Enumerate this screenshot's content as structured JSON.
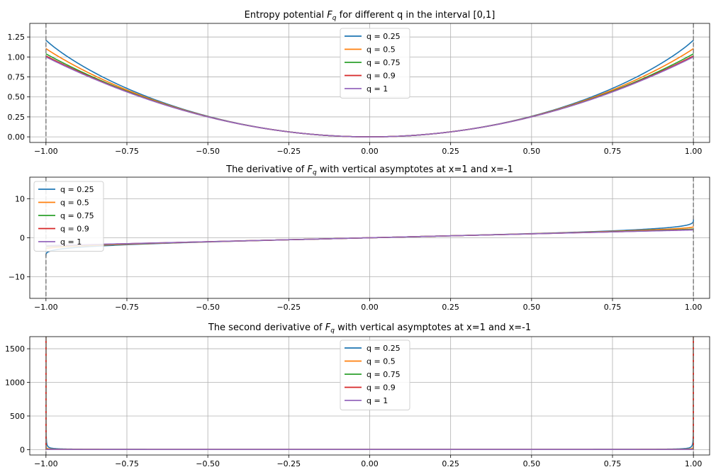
{
  "chart_data": [
    {
      "type": "line",
      "title": {
        "pre": "Entropy potential ",
        "sym": "F",
        "sub": "q",
        "post": " for different q in the interval [0,1]"
      },
      "xlim": [
        -1.05,
        1.05
      ],
      "ylim": [
        -0.07,
        1.42
      ],
      "xticks": [
        -1.0,
        -0.75,
        -0.5,
        -0.25,
        0.0,
        0.25,
        0.5,
        0.75,
        1.0
      ],
      "xtick_labels": [
        "−1.00",
        "−0.75",
        "−0.50",
        "−0.25",
        "0.00",
        "0.25",
        "0.50",
        "0.75",
        "1.00"
      ],
      "yticks": [
        0,
        0.25,
        0.5,
        0.75,
        1.0,
        1.25
      ],
      "ytick_labels": [
        "0.00",
        "0.25",
        "0.50",
        "0.75",
        "1.00",
        "1.25"
      ],
      "grid": true,
      "legend_position": "top-center",
      "vertical_asymptotes": [
        -1,
        1
      ],
      "function": "F",
      "series": [
        {
          "name": "q = 0.25",
          "q": 0.25,
          "color": "#1f77b4"
        },
        {
          "name": "q = 0.5",
          "q": 0.5,
          "color": "#ff7f0e"
        },
        {
          "name": "q = 0.75",
          "q": 0.75,
          "color": "#2ca02c"
        },
        {
          "name": "q = 0.9",
          "q": 0.9,
          "color": "#d62728"
        },
        {
          "name": "q = 1",
          "q": 1,
          "color": "#9467bd"
        }
      ]
    },
    {
      "type": "line",
      "title": {
        "pre": "The derivative of ",
        "sym": "F",
        "sub": "q",
        "post": " with vertical asymptotes at x=1 and x=-1"
      },
      "xlim": [
        -1.05,
        1.05
      ],
      "ylim": [
        -15.5,
        15.5
      ],
      "xticks": [
        -1.0,
        -0.75,
        -0.5,
        -0.25,
        0.0,
        0.25,
        0.5,
        0.75,
        1.0
      ],
      "xtick_labels": [
        "−1.00",
        "−0.75",
        "−0.50",
        "−0.25",
        "0.00",
        "0.25",
        "0.50",
        "0.75",
        "1.00"
      ],
      "yticks": [
        -10,
        0,
        10
      ],
      "ytick_labels": [
        "−10",
        "0",
        "10"
      ],
      "grid": true,
      "legend_position": "top-left",
      "vertical_asymptotes": [
        -1,
        1
      ],
      "function": "dF",
      "series": [
        {
          "name": "q = 0.25",
          "q": 0.25,
          "color": "#1f77b4"
        },
        {
          "name": "q = 0.5",
          "q": 0.5,
          "color": "#ff7f0e"
        },
        {
          "name": "q = 0.75",
          "q": 0.75,
          "color": "#2ca02c"
        },
        {
          "name": "q = 0.9",
          "q": 0.9,
          "color": "#d62728"
        },
        {
          "name": "q = 1",
          "q": 1,
          "color": "#9467bd"
        }
      ]
    },
    {
      "type": "line",
      "title": {
        "pre": "The second derivative of ",
        "sym": "F",
        "sub": "q",
        "post": " with vertical asymptotes at x=1 and x=-1"
      },
      "xlim": [
        -1.05,
        1.05
      ],
      "ylim": [
        -80,
        1680
      ],
      "xticks": [
        -1.0,
        -0.75,
        -0.5,
        -0.25,
        0.0,
        0.25,
        0.5,
        0.75,
        1.0
      ],
      "xtick_labels": [
        "−1.00",
        "−0.75",
        "−0.50",
        "−0.25",
        "0.00",
        "0.25",
        "0.50",
        "0.75",
        "1.00"
      ],
      "yticks": [
        0,
        500,
        1000,
        1500
      ],
      "ytick_labels": [
        "0",
        "500",
        "1000",
        "1500"
      ],
      "grid": true,
      "legend_position": "top-center",
      "vertical_asymptotes": [
        -1,
        1
      ],
      "function": "d2F",
      "series": [
        {
          "name": "q = 0.25",
          "q": 0.25,
          "color": "#1f77b4"
        },
        {
          "name": "q = 0.5",
          "q": 0.5,
          "color": "#ff7f0e"
        },
        {
          "name": "q = 0.75",
          "q": 0.75,
          "color": "#2ca02c"
        },
        {
          "name": "q = 0.9",
          "q": 0.9,
          "color": "#d62728"
        },
        {
          "name": "q = 1",
          "q": 1,
          "color": "#9467bd"
        }
      ]
    }
  ]
}
